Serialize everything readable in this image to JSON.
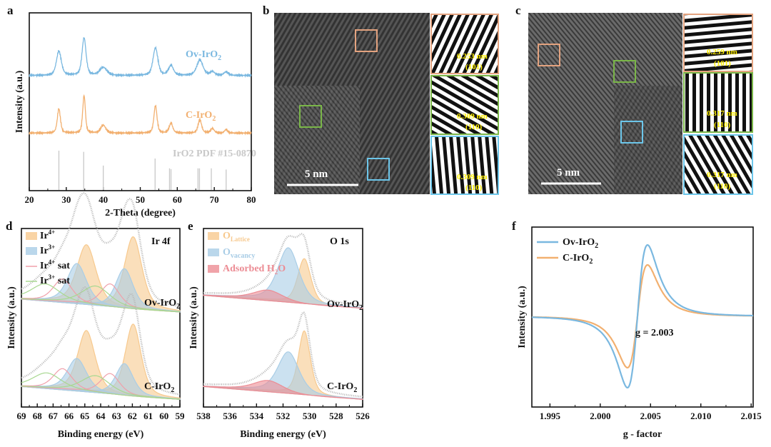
{
  "panel_labels": [
    "a",
    "b",
    "c",
    "d",
    "e",
    "f"
  ],
  "colors": {
    "ov": "#7ab8e0",
    "c": "#f2b070",
    "ref": "#c8c8c8",
    "ir4": "#f7c98e",
    "ir3": "#a9cde6",
    "ir4sat": "#f0a0aa",
    "ir3sat": "#a8d890",
    "h2o": "#ec8c94",
    "env": "#b8b8b8",
    "tem_orange": "#e4a37f",
    "tem_green": "#7ab648",
    "tem_blue": "#6cc6ea",
    "fft_text": "#ffee00"
  },
  "tem": {
    "b": {
      "scale": "5 nm",
      "insets": [
        {
          "d": "0.253 nm",
          "plane": "(101)"
        },
        {
          "d": "0.309 nm",
          "plane": "(110)"
        },
        {
          "d": "0.309 nm",
          "plane": "(110)"
        }
      ]
    },
    "c": {
      "scale": "5 nm",
      "insets": [
        {
          "d": "0.259 nm",
          "plane": "(101)"
        },
        {
          "d": "0.317 nm",
          "plane": "(110)"
        },
        {
          "d": "0.317 nm",
          "plane": "(110)"
        }
      ]
    }
  },
  "chart_data": [
    {
      "panel": "a",
      "type": "line",
      "xlabel": "2-Theta (degree)",
      "ylabel": "Intensity (a.u.)",
      "xlim": [
        20,
        80
      ],
      "xticks": [
        20,
        30,
        40,
        50,
        60,
        70,
        80
      ],
      "series": [
        {
          "name": "Ov-IrO2",
          "label": "Ov-IrO",
          "offset": 2.6,
          "peaks": [
            [
              28,
              0.55,
              1.1
            ],
            [
              34.8,
              0.85,
              0.9
            ],
            [
              40,
              0.18,
              1.6
            ],
            [
              54.1,
              0.62,
              1.1
            ],
            [
              58.3,
              0.22,
              1.1
            ],
            [
              66.1,
              0.35,
              1.4
            ],
            [
              69.5,
              0.08,
              1
            ],
            [
              73.2,
              0.08,
              1
            ]
          ]
        },
        {
          "name": "C-IrO2",
          "label": "C-IrO",
          "offset": 1.3,
          "peaks": [
            [
              28,
              0.55,
              0.7
            ],
            [
              34.8,
              0.85,
              0.6
            ],
            [
              40,
              0.18,
              1.1
            ],
            [
              54.1,
              0.62,
              0.7
            ],
            [
              58.3,
              0.22,
              0.8
            ],
            [
              66.1,
              0.3,
              0.8
            ],
            [
              69.5,
              0.1,
              0.8
            ],
            [
              73.2,
              0.08,
              0.7
            ]
          ]
        }
      ],
      "reference": {
        "label": "IrO2 PDF #15-0870",
        "sticks": [
          [
            28,
            1
          ],
          [
            34.7,
            0.97
          ],
          [
            40,
            0.62
          ],
          [
            54,
            0.8
          ],
          [
            57.9,
            0.55
          ],
          [
            58.3,
            0.53
          ],
          [
            65.6,
            0.55
          ],
          [
            66,
            0.55
          ],
          [
            69.2,
            0.55
          ],
          [
            73.2,
            0.52
          ]
        ]
      }
    },
    {
      "panel": "d",
      "type": "area",
      "title": "Ir 4f",
      "xlabel": "Binding energy (eV)",
      "ylabel": "Intensity (a.u.)",
      "xlim": [
        69,
        59
      ],
      "xticks": [
        69,
        68,
        67,
        66,
        65,
        64,
        63,
        62,
        61,
        60,
        59
      ],
      "legend": [
        "Ir4+",
        "Ir3+",
        "Ir4+ sat",
        "Ir3+ sat"
      ],
      "series": [
        {
          "name": "Ov-IrO2",
          "label": "Ov-IrO",
          "offset": 1.25,
          "components": {
            "ir4": [
              [
                61.95,
                0.95,
                0.55
              ],
              [
                64.9,
                0.78,
                0.6
              ]
            ],
            "ir3": [
              [
                62.5,
                0.52,
                0.55
              ],
              [
                65.5,
                0.52,
                0.6
              ]
            ],
            "ir4sat": [
              [
                63.4,
                0.3,
                0.6
              ],
              [
                66.4,
                0.3,
                0.6
              ]
            ],
            "ir3sat": [
              [
                64.3,
                0.25,
                0.9
              ],
              [
                67.5,
                0.22,
                0.9
              ]
            ]
          }
        },
        {
          "name": "C-IrO2",
          "label": "C-IrO",
          "offset": 0.1,
          "components": {
            "ir4": [
              [
                61.95,
                0.95,
                0.5
              ],
              [
                64.9,
                0.8,
                0.55
              ]
            ],
            "ir3": [
              [
                62.5,
                0.42,
                0.55
              ],
              [
                65.5,
                0.42,
                0.6
              ]
            ],
            "ir4sat": [
              [
                63.4,
                0.27,
                0.6
              ],
              [
                66.4,
                0.27,
                0.6
              ]
            ],
            "ir3sat": [
              [
                64.3,
                0.22,
                0.9
              ],
              [
                67.4,
                0.2,
                0.9
              ]
            ]
          }
        }
      ]
    },
    {
      "panel": "e",
      "type": "area",
      "title": "O 1s",
      "xlabel": "Binding energy (eV)",
      "ylabel": "Intensity (a.u.)",
      "xlim": [
        538,
        526
      ],
      "xticks": [
        538,
        536,
        534,
        532,
        530,
        528,
        526
      ],
      "legend": [
        "OLattice",
        "Ovacancy",
        "Adsorbed H2O"
      ],
      "series": [
        {
          "name": "Ov-IrO2",
          "label": "Ov-IrO",
          "offset": 1.3,
          "components": {
            "lat": [
              [
                530.4,
                0.6,
                0.5
              ]
            ],
            "vac": [
              [
                531.6,
                0.72,
                0.8
              ]
            ],
            "h2o": [
              [
                533.1,
                0.13,
                1.1
              ]
            ]
          }
        },
        {
          "name": "C-IrO2",
          "label": "C-IrO",
          "offset": 0.1,
          "components": {
            "lat": [
              [
                530.4,
                0.85,
                0.45
              ]
            ],
            "vac": [
              [
                531.6,
                0.55,
                0.8
              ]
            ],
            "h2o": [
              [
                533.1,
                0.14,
                1.1
              ]
            ]
          }
        }
      ]
    },
    {
      "panel": "f",
      "type": "line",
      "xlabel": "g - factor",
      "ylabel": "Intensity (a.u.)",
      "xlim": [
        1.9932,
        2.0152
      ],
      "xticks": [
        1.995,
        2.0,
        2.005,
        2.01,
        2.015
      ],
      "annotation": "g = 2.003",
      "series": [
        {
          "name": "Ov-IrO2",
          "label": "Ov-IrO",
          "center": 2.0037,
          "amplitude": 1.0
        },
        {
          "name": "C-IrO2",
          "label": "C-IrO",
          "center": 2.0037,
          "amplitude": 0.72
        }
      ]
    }
  ]
}
